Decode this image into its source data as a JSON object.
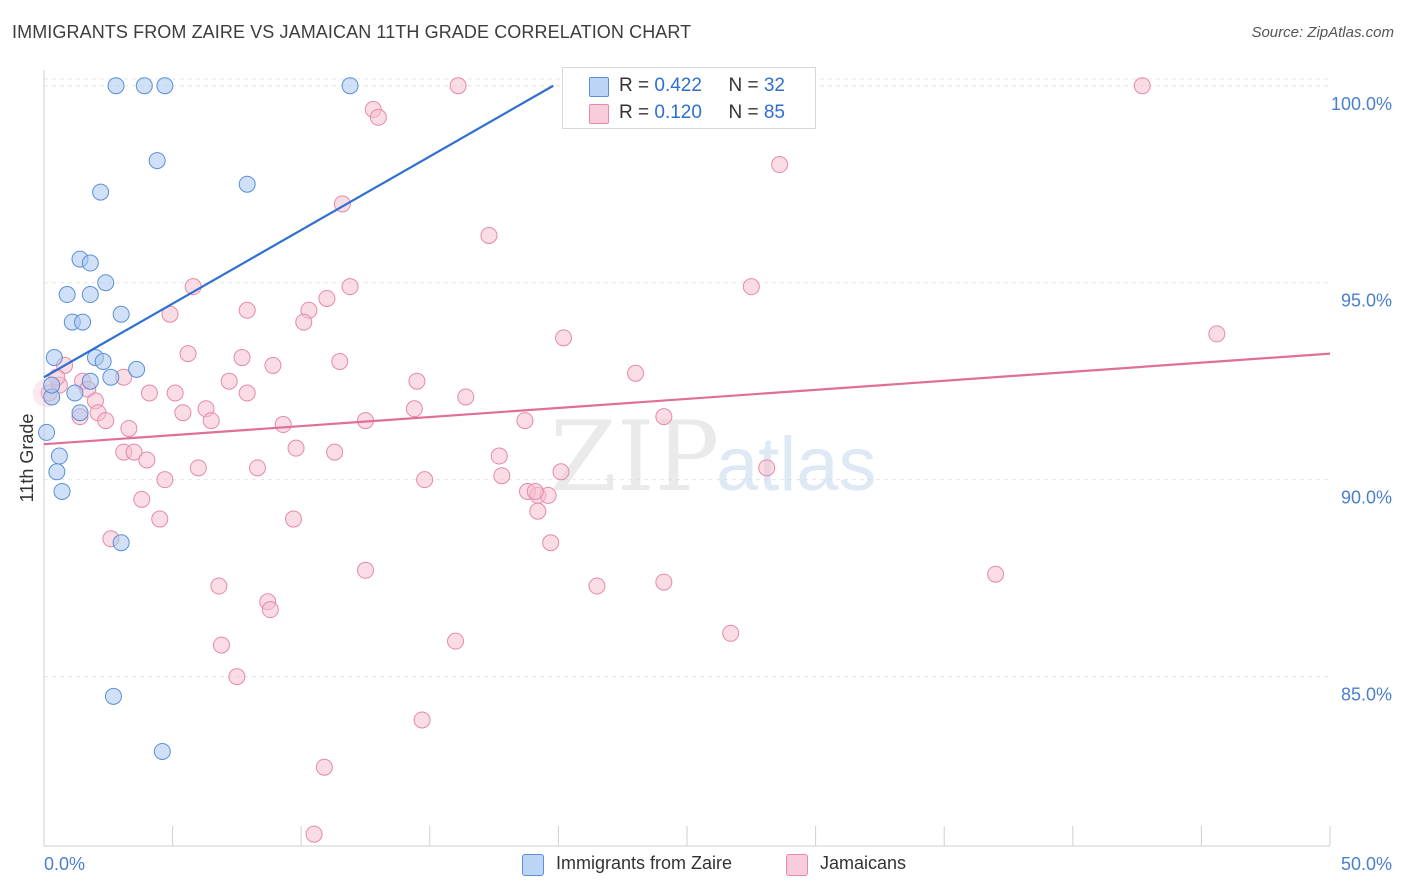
{
  "header": {
    "title": "IMMIGRANTS FROM ZAIRE VS JAMAICAN 11TH GRADE CORRELATION CHART",
    "source": "Source: ZipAtlas.com"
  },
  "watermark": {
    "part1": "ZIP",
    "part2": "atlas"
  },
  "legend": {
    "rows": [
      {
        "r_label": "R = ",
        "r_value": "0.422",
        "n_label": "N = ",
        "n_value": "32"
      },
      {
        "r_label": "R = ",
        "r_value": "0.120",
        "n_label": "N = ",
        "n_value": "85"
      }
    ],
    "bottom": [
      "Immigrants from Zaire",
      "Jamaicans"
    ]
  },
  "colors": {
    "zaire_fill": "#a9c8f0",
    "zaire_stroke": "#5b8fd6",
    "zaire_line": "#2f6fd0",
    "jam_fill": "#f6bfd0",
    "jam_stroke": "#e58aa8",
    "jam_line": "#e06f98",
    "axis_label": "#4a7fcc",
    "grid": "#e6e6e6"
  },
  "chart_data": {
    "type": "scatter",
    "title": "IMMIGRANTS FROM ZAIRE VS JAMAICAN 11TH GRADE CORRELATION CHART",
    "xlabel": "",
    "ylabel": "11th Grade",
    "xlim": [
      0,
      50
    ],
    "ylim": [
      80.7,
      100.4
    ],
    "x_tick_labels": [
      "0.0%",
      "50.0%"
    ],
    "y_ticks": [
      85,
      90,
      95,
      100
    ],
    "y_tick_labels": [
      "85.0%",
      "90.0%",
      "95.0%",
      "100.0%"
    ],
    "grid": "horizontal dashed",
    "legend_placement": "top-center",
    "series": [
      {
        "name": "Immigrants from Zaire",
        "r": 0.422,
        "n": 32,
        "trend": {
          "x": [
            0.0,
            19.8
          ],
          "y": [
            92.6,
            100.0
          ]
        },
        "points": [
          [
            2.8,
            100.0
          ],
          [
            3.9,
            100.0
          ],
          [
            4.7,
            100.0
          ],
          [
            11.9,
            100.0
          ],
          [
            4.4,
            98.1
          ],
          [
            2.2,
            97.3
          ],
          [
            7.9,
            97.5
          ],
          [
            1.4,
            95.6
          ],
          [
            1.8,
            95.5
          ],
          [
            2.4,
            95.0
          ],
          [
            0.9,
            94.7
          ],
          [
            1.8,
            94.7
          ],
          [
            3.0,
            94.2
          ],
          [
            1.1,
            94.0
          ],
          [
            1.5,
            94.0
          ],
          [
            0.4,
            93.1
          ],
          [
            2.0,
            93.1
          ],
          [
            2.3,
            93.0
          ],
          [
            3.6,
            92.8
          ],
          [
            1.8,
            92.5
          ],
          [
            2.6,
            92.6
          ],
          [
            0.3,
            92.1
          ],
          [
            1.2,
            92.2
          ],
          [
            1.4,
            91.7
          ],
          [
            0.1,
            91.2
          ],
          [
            0.6,
            90.6
          ],
          [
            0.5,
            90.2
          ],
          [
            0.7,
            89.7
          ],
          [
            3.0,
            88.4
          ],
          [
            2.7,
            84.5
          ],
          [
            4.6,
            83.1
          ],
          [
            0.3,
            92.4
          ]
        ]
      },
      {
        "name": "Jamaicans",
        "r": 0.12,
        "n": 85,
        "trend": {
          "x": [
            0.0,
            50.0
          ],
          "y": [
            90.9,
            93.2
          ]
        },
        "points": [
          [
            16.1,
            100.0
          ],
          [
            42.7,
            100.0
          ],
          [
            12.8,
            99.4
          ],
          [
            13.0,
            99.2
          ],
          [
            28.6,
            98.0
          ],
          [
            11.6,
            97.0
          ],
          [
            17.3,
            96.2
          ],
          [
            5.8,
            94.9
          ],
          [
            11.9,
            94.9
          ],
          [
            27.5,
            94.9
          ],
          [
            11.0,
            94.6
          ],
          [
            10.3,
            94.3
          ],
          [
            7.9,
            94.3
          ],
          [
            4.9,
            94.2
          ],
          [
            10.1,
            94.0
          ],
          [
            20.2,
            93.6
          ],
          [
            45.6,
            93.7
          ],
          [
            5.6,
            93.2
          ],
          [
            7.7,
            93.1
          ],
          [
            11.5,
            93.0
          ],
          [
            0.8,
            92.9
          ],
          [
            8.9,
            92.9
          ],
          [
            1.5,
            92.5
          ],
          [
            7.2,
            92.5
          ],
          [
            14.5,
            92.5
          ],
          [
            23.0,
            92.7
          ],
          [
            0.6,
            92.4
          ],
          [
            3.1,
            92.6
          ],
          [
            1.7,
            92.3
          ],
          [
            4.1,
            92.2
          ],
          [
            5.1,
            92.2
          ],
          [
            7.9,
            92.2
          ],
          [
            16.4,
            92.1
          ],
          [
            2.0,
            92.0
          ],
          [
            1.4,
            91.6
          ],
          [
            6.3,
            91.8
          ],
          [
            5.4,
            91.7
          ],
          [
            14.4,
            91.8
          ],
          [
            2.1,
            91.7
          ],
          [
            2.4,
            91.5
          ],
          [
            6.5,
            91.5
          ],
          [
            9.3,
            91.4
          ],
          [
            12.5,
            91.5
          ],
          [
            24.1,
            91.6
          ],
          [
            3.3,
            91.3
          ],
          [
            9.8,
            90.8
          ],
          [
            11.3,
            90.7
          ],
          [
            3.1,
            90.7
          ],
          [
            3.5,
            90.7
          ],
          [
            4.0,
            90.5
          ],
          [
            17.7,
            90.6
          ],
          [
            6.0,
            90.3
          ],
          [
            8.3,
            90.3
          ],
          [
            28.1,
            90.3
          ],
          [
            17.8,
            90.1
          ],
          [
            20.1,
            90.2
          ],
          [
            4.7,
            90.0
          ],
          [
            14.8,
            90.0
          ],
          [
            18.8,
            89.7
          ],
          [
            19.2,
            89.6
          ],
          [
            19.6,
            89.6
          ],
          [
            19.1,
            89.7
          ],
          [
            3.8,
            89.5
          ],
          [
            19.2,
            89.2
          ],
          [
            4.5,
            89.0
          ],
          [
            9.7,
            89.0
          ],
          [
            2.6,
            88.5
          ],
          [
            19.7,
            88.4
          ],
          [
            12.5,
            87.7
          ],
          [
            37.0,
            87.6
          ],
          [
            6.8,
            87.3
          ],
          [
            21.5,
            87.3
          ],
          [
            24.1,
            87.4
          ],
          [
            8.7,
            86.9
          ],
          [
            8.8,
            86.7
          ],
          [
            26.7,
            86.1
          ],
          [
            16.0,
            85.9
          ],
          [
            6.9,
            85.8
          ],
          [
            7.5,
            85.0
          ],
          [
            14.7,
            83.9
          ],
          [
            10.9,
            82.7
          ],
          [
            10.5,
            81.0
          ],
          [
            0.2,
            92.2
          ],
          [
            0.5,
            92.6
          ],
          [
            18.7,
            91.5
          ]
        ]
      }
    ]
  }
}
